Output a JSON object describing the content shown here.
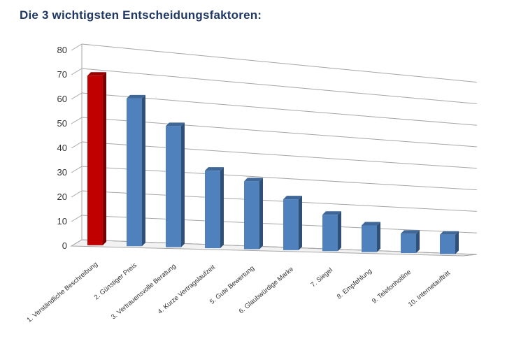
{
  "title": "Die 3 wichtigsten Entscheidungsfaktoren:",
  "chart_data": {
    "type": "bar",
    "title": "Die 3 wichtigsten Entscheidungsfaktoren:",
    "categories": [
      "1.  Verständliche Beschreibung",
      "2.  Günstiger Preis",
      "3.  Vertrauensvolle Beratung",
      "4.  Kurze Vertragslaufzeit",
      "5.  Gute Bewertung",
      "6.  Glaubwürdige Marke",
      "7.  Siegel",
      "8.  Empfehlung",
      "9.  Telefonhotline",
      "10.  Internetauftritt"
    ],
    "values": [
      70,
      61,
      50,
      32,
      28,
      21,
      15,
      11,
      8,
      8
    ],
    "ylim": [
      0,
      80
    ],
    "yticks": [
      0,
      10,
      20,
      30,
      40,
      50,
      60,
      70,
      80
    ],
    "grid": true,
    "legend": "none",
    "colors": {
      "highlight": "#c00000",
      "bar": "#4f81bd",
      "grid": "#a6a6a6"
    },
    "highlight_index": 0
  }
}
